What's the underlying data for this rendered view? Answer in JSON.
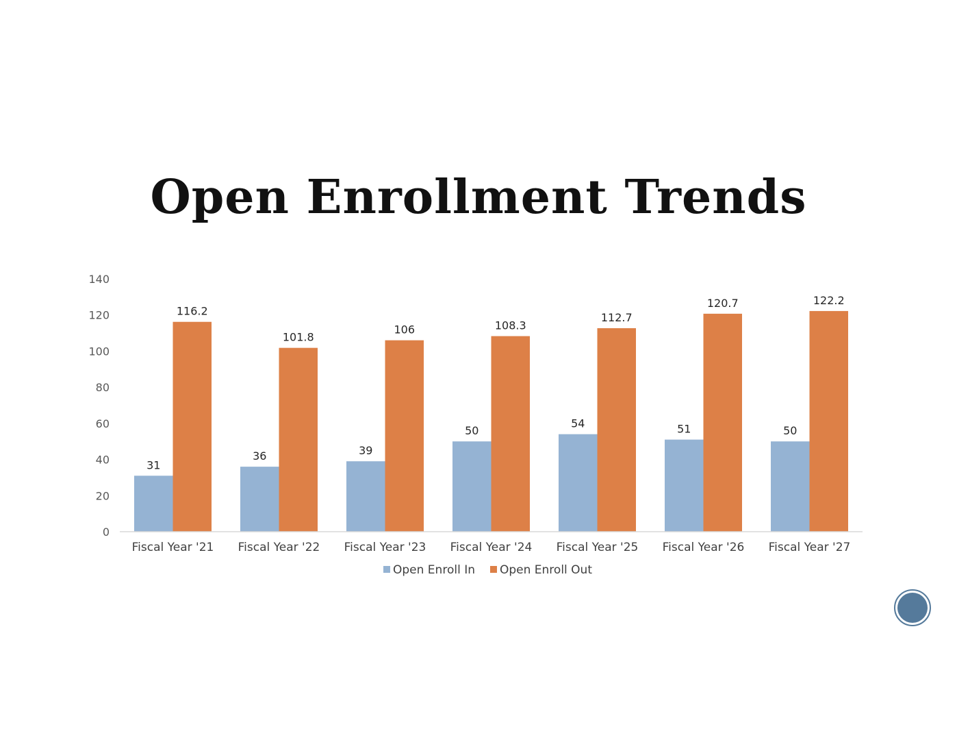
{
  "chart_data": {
    "type": "bar",
    "title": "Open Enrollment Trends",
    "categories": [
      "Fiscal Year '21",
      "Fiscal Year '22",
      "Fiscal Year '23",
      "Fiscal Year '24",
      "Fiscal Year '25",
      "Fiscal Year '26",
      "Fiscal Year '27"
    ],
    "series": [
      {
        "name": "Open Enroll In",
        "color": "#95B3D3",
        "values": [
          31,
          36,
          39,
          50,
          54,
          51,
          50
        ]
      },
      {
        "name": "Open Enroll Out",
        "color": "#DD8047",
        "values": [
          116.2,
          101.8,
          106,
          108.3,
          112.7,
          120.7,
          122.2
        ]
      }
    ],
    "ylim": [
      0,
      140
    ],
    "yticks": [
      0,
      20,
      40,
      60,
      80,
      100,
      120,
      140
    ],
    "grid": false,
    "data_labels": true,
    "legend": "bottom"
  },
  "decoration": {
    "badge_color": "#557A9B",
    "badge_icon": "circle-badge-icon"
  }
}
